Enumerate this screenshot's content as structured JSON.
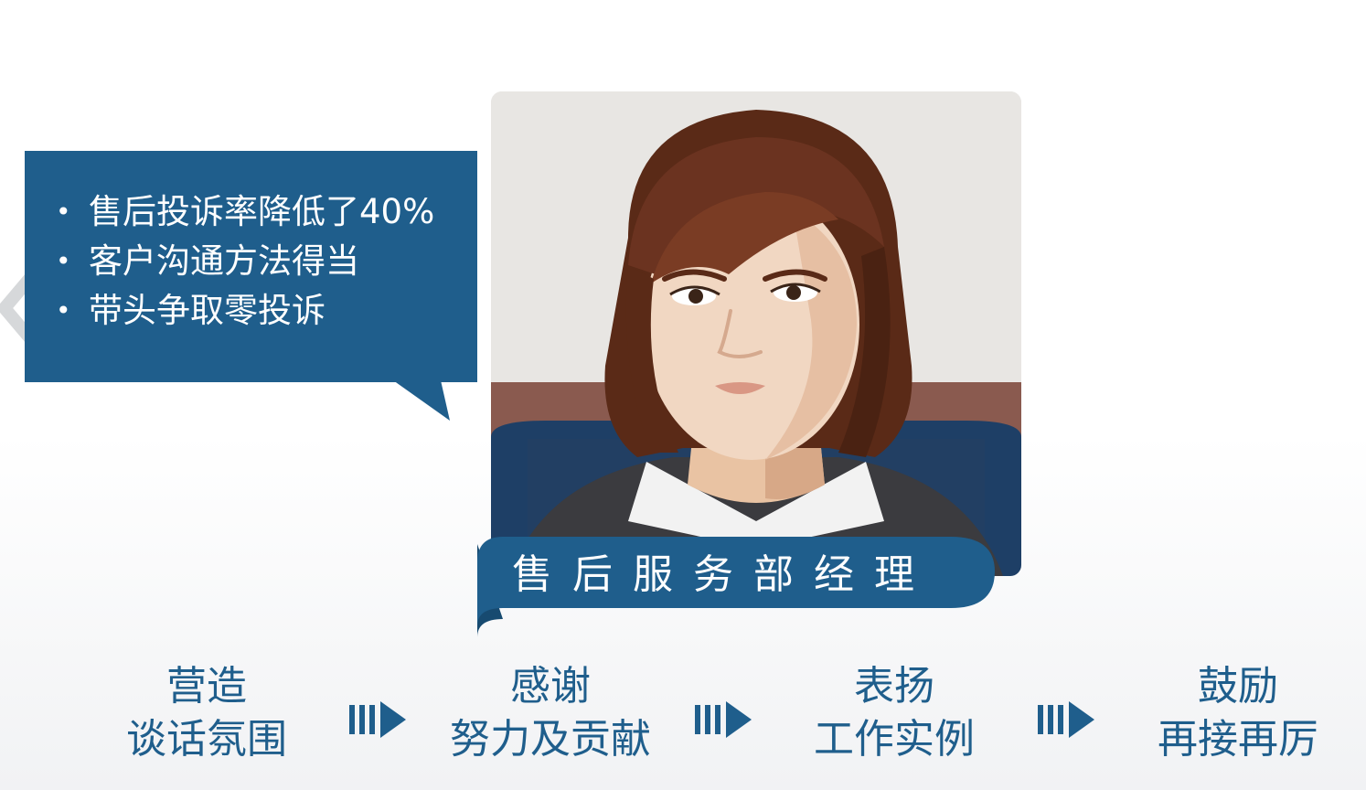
{
  "bubble": {
    "items": [
      "售后投诉率降低了40%",
      "客户沟通方法得当",
      "带头争取零投诉"
    ]
  },
  "title": {
    "label": "售后服务部经理"
  },
  "steps": [
    {
      "line1": "营造",
      "line2": "谈话氛围"
    },
    {
      "line1": "感谢",
      "line2": "努力及贡献"
    },
    {
      "line1": "表扬",
      "line2": "工作实例"
    },
    {
      "line1": "鼓励",
      "line2": "再接再厉"
    }
  ],
  "colors": {
    "accent": "#1f5e8c",
    "accent_dark": "#174a70"
  },
  "icons": {
    "back": "chevron-left-icon",
    "next": "double-arrow-right-icon"
  }
}
